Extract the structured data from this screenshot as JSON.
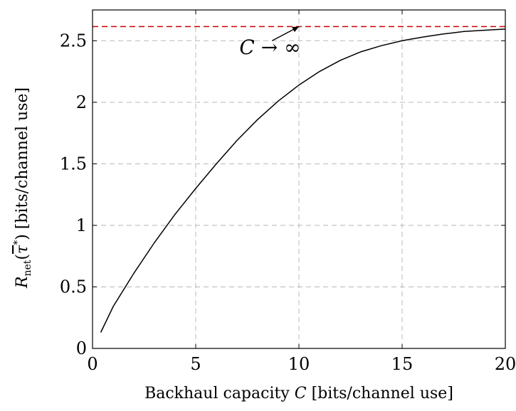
{
  "chart_data": {
    "type": "line",
    "xlabel": "Backhaul capacity C [bits/channel use]",
    "xlabel_parts": {
      "text": "Backhaul capacity ",
      "var": "C",
      "unit": " [bits/channel use]"
    },
    "ylabel": "R_net(τ̄*) [bits/channel use]",
    "ylabel_parts": {
      "var": "R",
      "sub": "net",
      "paren_open": "(",
      "arg": "τ",
      "sup": "*",
      "paren_close": ")",
      "unit": " [bits/channel use]"
    },
    "xlim": [
      0,
      20
    ],
    "ylim": [
      0,
      2.75
    ],
    "xticks": [
      0,
      5,
      10,
      15,
      20
    ],
    "xtick_labels": [
      "0",
      "5",
      "10",
      "15",
      "20"
    ],
    "yticks": [
      0,
      0.5,
      1,
      1.5,
      2,
      2.5
    ],
    "ytick_labels": [
      "0",
      "0.5",
      "1",
      "1.5",
      "2",
      "2.5"
    ],
    "grid": true,
    "series": [
      {
        "color": "#000000",
        "style": "solid",
        "x": [
          0.4,
          1,
          2,
          3,
          4,
          5,
          6,
          7,
          8,
          9,
          10,
          11,
          12,
          13,
          14,
          15,
          16,
          17,
          18,
          19,
          20
        ],
        "y": [
          0.13,
          0.34,
          0.61,
          0.86,
          1.09,
          1.3,
          1.5,
          1.69,
          1.86,
          2.01,
          2.14,
          2.25,
          2.34,
          2.41,
          2.46,
          2.5,
          2.53,
          2.555,
          2.575,
          2.585,
          2.595
        ]
      },
      {
        "color": "#cc0000",
        "style": "dashed",
        "x": [
          0,
          20
        ],
        "y": [
          2.615,
          2.615
        ]
      }
    ],
    "annotation": {
      "text_var": "C",
      "text_rest": " → ∞",
      "text_x": 8.6,
      "text_y": 2.45,
      "arrow_from": [
        8.7,
        2.5
      ],
      "arrow_to": [
        10.0,
        2.615
      ]
    }
  }
}
